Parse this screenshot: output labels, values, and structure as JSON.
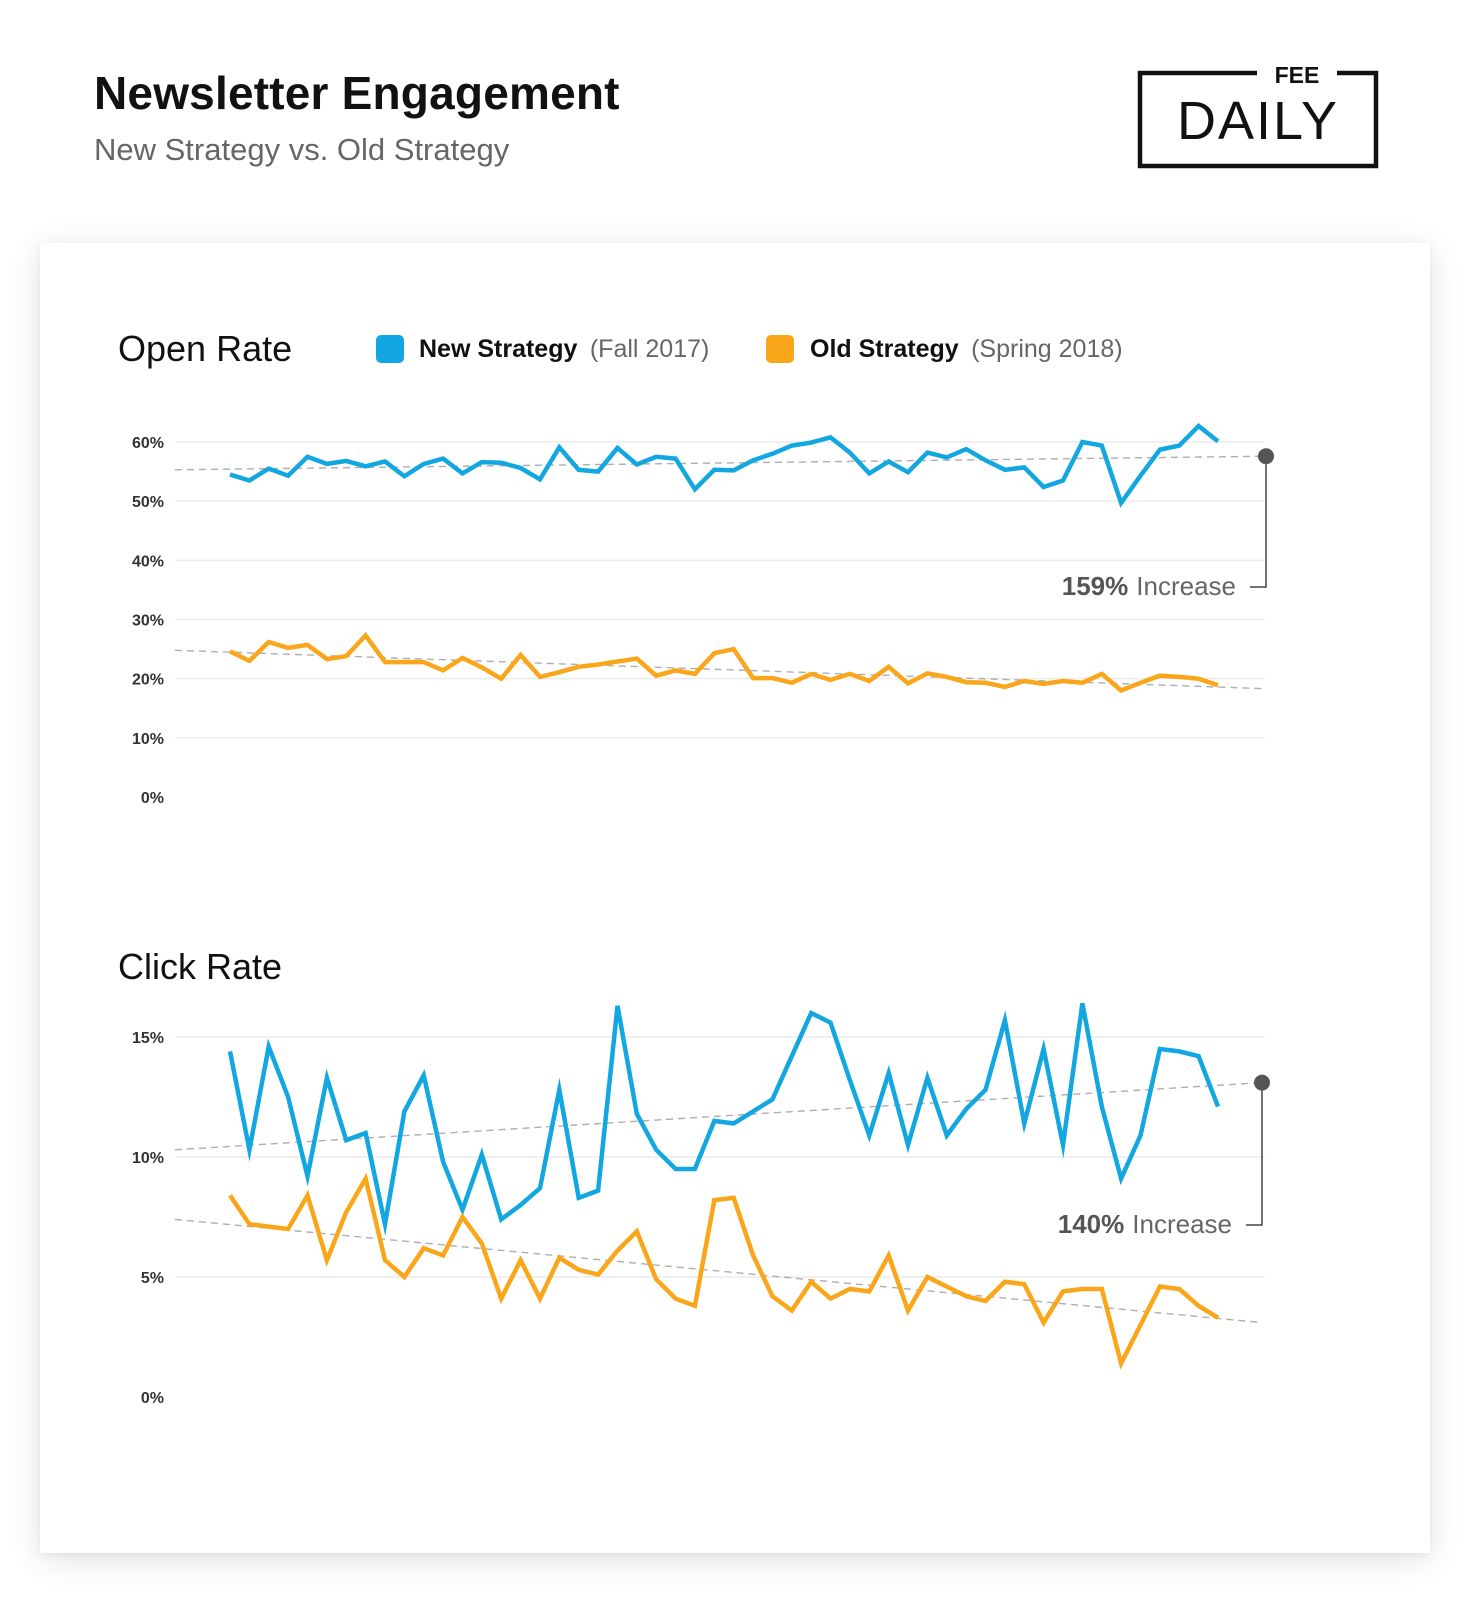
{
  "header": {
    "title": "Newsletter Engagement",
    "subtitle": "New Strategy vs. Old Strategy"
  },
  "logo": {
    "small_text": "FEE",
    "large_text": "DAILY"
  },
  "legend": {
    "new": {
      "label": "New Strategy",
      "note": "(Fall 2017)",
      "color": "#12a7e0"
    },
    "old": {
      "label": "Old Strategy",
      "note": "(Spring 2018)",
      "color": "#faa61a"
    }
  },
  "chart_data": [
    {
      "type": "line",
      "title": "Open Rate",
      "ylabel": "",
      "xlabel": "",
      "ylim": [
        0,
        60
      ],
      "yticks": [
        0,
        10,
        20,
        30,
        40,
        50,
        60
      ],
      "ytick_labels": [
        "0%",
        "10%",
        "20%",
        "30%",
        "40%",
        "50%",
        "60%"
      ],
      "x": [
        1,
        2,
        3,
        4,
        5,
        6,
        7,
        8,
        9,
        10,
        11,
        12,
        13,
        14,
        15,
        16,
        17,
        18,
        19,
        20,
        21,
        22,
        23,
        24,
        25,
        26,
        27,
        28,
        29,
        30,
        31,
        32,
        33,
        34,
        35,
        36,
        37,
        38,
        39,
        40,
        41,
        42,
        43,
        44,
        45,
        46,
        47,
        48,
        49,
        50,
        51,
        52
      ],
      "series": [
        {
          "name": "New Strategy",
          "values": [
            54.5,
            53.5,
            55.5,
            54.3,
            57.5,
            56.3,
            56.8,
            55.9,
            56.7,
            54.2,
            56.3,
            57.2,
            54.7,
            56.6,
            56.5,
            55.6,
            53.7,
            59.1,
            55.3,
            55.0,
            59.0,
            56.2,
            57.5,
            57.2,
            52.0,
            55.3,
            55.2,
            56.9,
            58.0,
            59.4,
            59.9,
            60.8,
            58.2,
            54.7,
            56.7,
            54.9,
            58.2,
            57.4,
            58.8,
            56.9,
            55.3,
            55.7,
            52.4,
            53.5,
            60.0,
            59.4,
            49.7,
            54.3,
            58.7,
            59.4,
            62.7,
            60.1
          ],
          "trend": [
            55.3,
            57.6
          ]
        },
        {
          "name": "Old Strategy",
          "values": [
            24.6,
            23.0,
            26.2,
            25.2,
            25.7,
            23.3,
            23.8,
            27.3,
            22.8,
            22.8,
            22.8,
            21.4,
            23.5,
            21.9,
            20.0,
            24.0,
            20.3,
            21.1,
            22.0,
            22.4,
            22.9,
            23.4,
            20.5,
            21.4,
            20.8,
            24.3,
            25.0,
            20.1,
            20.1,
            19.3,
            20.8,
            19.8,
            20.8,
            19.6,
            22.0,
            19.2,
            20.9,
            20.3,
            19.4,
            19.3,
            18.6,
            19.6,
            19.1,
            19.6,
            19.3,
            20.8,
            18.0,
            19.3,
            20.5,
            20.3,
            20.0,
            18.9
          ],
          "trend": [
            24.8,
            18.3
          ]
        }
      ],
      "annotation": {
        "value": "159%",
        "text": "Increase"
      }
    },
    {
      "type": "line",
      "title": "Click Rate",
      "ylabel": "",
      "xlabel": "",
      "ylim": [
        0,
        15
      ],
      "yticks": [
        0,
        5,
        10,
        15
      ],
      "ytick_labels": [
        "0%",
        "5%",
        "10%",
        "15%"
      ],
      "x": [
        1,
        2,
        3,
        4,
        5,
        6,
        7,
        8,
        9,
        10,
        11,
        12,
        13,
        14,
        15,
        16,
        17,
        18,
        19,
        20,
        21,
        22,
        23,
        24,
        25,
        26,
        27,
        28,
        29,
        30,
        31,
        32,
        33,
        34,
        35,
        36,
        37,
        38,
        39,
        40,
        41,
        42,
        43,
        44,
        45,
        46,
        47,
        48,
        49,
        50,
        51,
        52
      ],
      "series": [
        {
          "name": "New Strategy",
          "values": [
            14.4,
            10.3,
            14.6,
            12.5,
            9.2,
            13.3,
            10.7,
            11.0,
            7.2,
            11.9,
            13.4,
            9.8,
            7.8,
            10.1,
            7.4,
            8.0,
            8.7,
            12.8,
            8.3,
            8.6,
            16.3,
            11.8,
            10.3,
            9.5,
            9.5,
            11.5,
            11.4,
            11.9,
            12.4,
            14.2,
            16.0,
            15.6,
            13.2,
            10.9,
            13.5,
            10.5,
            13.3,
            10.9,
            12.0,
            12.8,
            15.7,
            11.4,
            14.5,
            10.5,
            16.4,
            12.1,
            9.1,
            10.9,
            14.5,
            14.4,
            14.2,
            12.1
          ],
          "trend": [
            10.3,
            13.1
          ]
        },
        {
          "name": "Old Strategy",
          "values": [
            8.4,
            7.2,
            7.1,
            7.0,
            8.4,
            5.7,
            7.7,
            9.1,
            5.7,
            5.0,
            6.2,
            5.9,
            7.5,
            6.4,
            4.1,
            5.7,
            4.1,
            5.8,
            5.3,
            5.1,
            6.1,
            6.9,
            4.9,
            4.1,
            3.8,
            8.2,
            8.3,
            5.9,
            4.2,
            3.6,
            4.8,
            4.1,
            4.5,
            4.4,
            5.9,
            3.6,
            5.0,
            4.6,
            4.2,
            4.0,
            4.8,
            4.7,
            3.1,
            4.4,
            4.5,
            4.5,
            1.4,
            3.0,
            4.6,
            4.5,
            3.8,
            3.3
          ],
          "trend": [
            7.4,
            3.1
          ]
        }
      ],
      "annotation": {
        "value": "140%",
        "text": "Increase"
      }
    }
  ]
}
